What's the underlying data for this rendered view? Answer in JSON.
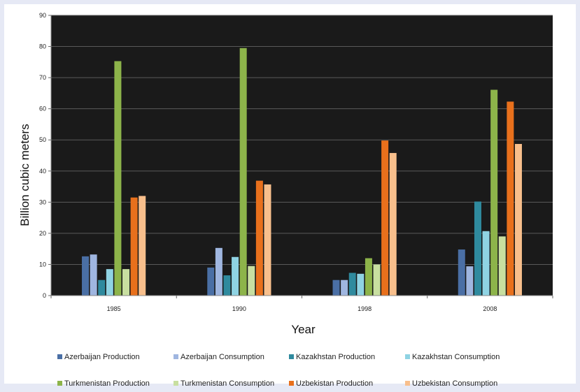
{
  "chart_data": {
    "type": "bar",
    "title": "",
    "xlabel": "Year",
    "ylabel": "Billion cubic meters",
    "ylim": [
      0,
      90
    ],
    "yticks": [
      0,
      10,
      20,
      30,
      40,
      50,
      60,
      70,
      80,
      90
    ],
    "categories": [
      "1985",
      "1990",
      "1998",
      "2008"
    ],
    "grid": true,
    "legend": "bottom",
    "series": [
      {
        "name": "Azerbaijan Production",
        "color": "#4a6fa5",
        "values": [
          12.6,
          9.0,
          5.0,
          14.8
        ]
      },
      {
        "name": "Azerbaijan Consumption",
        "color": "#9fb6e0",
        "values": [
          13.2,
          15.3,
          5.0,
          9.4
        ]
      },
      {
        "name": "Kazakhstan Production",
        "color": "#2f8a9e",
        "values": [
          5.0,
          6.5,
          7.3,
          30.2
        ]
      },
      {
        "name": "Kazakhstan Consumption",
        "color": "#8fd3e3",
        "values": [
          8.5,
          12.4,
          7.0,
          20.7
        ]
      },
      {
        "name": "Turkmenistan Production",
        "color": "#8db44a",
        "values": [
          75.3,
          79.5,
          12.0,
          66.1
        ]
      },
      {
        "name": "Turkmenistan Consumption",
        "color": "#c8dfa0",
        "values": [
          8.5,
          9.5,
          10.0,
          19.0
        ]
      },
      {
        "name": "Uzbekistan Production",
        "color": "#e8701c",
        "values": [
          31.5,
          36.9,
          49.8,
          62.3
        ]
      },
      {
        "name": "Uzbekistan Consumption",
        "color": "#f8bf8c",
        "values": [
          32.0,
          35.7,
          45.8,
          48.7
        ]
      }
    ]
  },
  "colors": {
    "plot_background": "#1a1a1a",
    "gridline": "#5a5a5a",
    "page_border": "#e6e9f5"
  }
}
